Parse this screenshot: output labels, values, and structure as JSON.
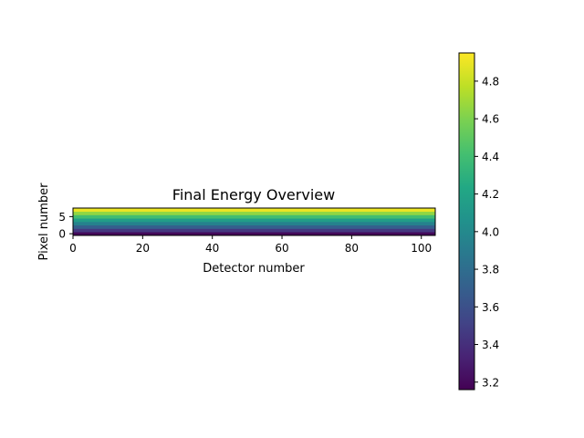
{
  "chart_data": {
    "type": "heatmap",
    "title": "Final Energy Overview",
    "xlabel": "Detector number",
    "ylabel": "Pixel number",
    "x_range": [
      0,
      104
    ],
    "y_range": [
      0,
      8
    ],
    "xticks": [
      0,
      20,
      40,
      60,
      80,
      100
    ],
    "yticks": [
      0,
      5
    ],
    "n_detectors": 104,
    "pixel_rows": [
      {
        "pixel": 0,
        "value": 3.2
      },
      {
        "pixel": 1,
        "value": 3.45
      },
      {
        "pixel": 2,
        "value": 3.7
      },
      {
        "pixel": 3,
        "value": 3.95
      },
      {
        "pixel": 4,
        "value": 4.15
      },
      {
        "pixel": 5,
        "value": 4.4
      },
      {
        "pixel": 6,
        "value": 4.65
      },
      {
        "pixel": 7,
        "value": 4.9
      }
    ],
    "colorbar": {
      "colormap": "viridis",
      "range": [
        3.16,
        4.95
      ],
      "ticks": [
        3.2,
        3.4,
        3.6,
        3.8,
        4.0,
        4.2,
        4.4,
        4.6,
        4.8
      ],
      "tick_labels": [
        "3.2",
        "3.4",
        "3.6",
        "3.8",
        "4.0",
        "4.2",
        "4.4",
        "4.6",
        "4.8"
      ]
    },
    "grid": false
  }
}
